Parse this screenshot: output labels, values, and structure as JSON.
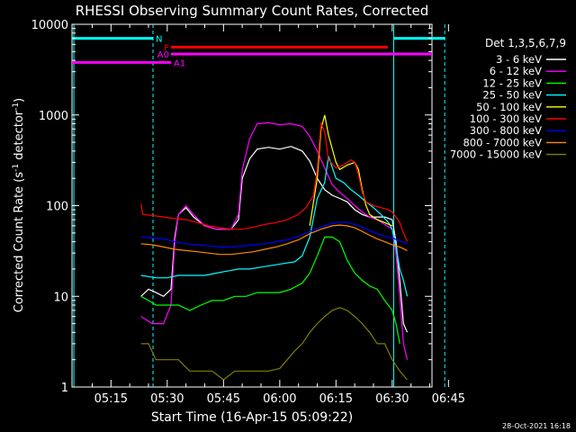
{
  "chart_data": {
    "type": "line",
    "title": "RHESSI Observing Summary Count Rates, Corrected",
    "xlabel": "Start Time (16-Apr-15 05:09:22)",
    "ylabel_main": "Corrected Count Rate (s",
    "ylabel_sup1": "-1",
    "ylabel_mid": " detector",
    "ylabel_sup2": "-1",
    "ylabel_end": ")",
    "yscale": "log",
    "ylim": [
      1,
      10000
    ],
    "xlim_min": [
      4.6,
      100.6
    ],
    "x_ticks": [
      {
        "t": 15,
        "label": "05:15"
      },
      {
        "t": 30,
        "label": "05:30"
      },
      {
        "t": 45,
        "label": "05:45"
      },
      {
        "t": 60,
        "label": "06:00"
      },
      {
        "t": 75,
        "label": "06:15"
      },
      {
        "t": 90,
        "label": "06:30"
      },
      {
        "t": 105,
        "label": "06:45"
      }
    ],
    "y_ticks": [
      {
        "v": 1,
        "label": "1"
      },
      {
        "v": 10,
        "label": "10"
      },
      {
        "v": 100,
        "label": "100"
      },
      {
        "v": 1000,
        "label": "1000"
      },
      {
        "v": 10000,
        "label": "10000"
      }
    ],
    "legend_title": "Det 1,3,5,6,7,9",
    "legend_position": "right",
    "series": [
      {
        "name": "3 - 6 keV",
        "color": "#ffffff",
        "points": [
          [
            23,
            10
          ],
          [
            25,
            12
          ],
          [
            27,
            11
          ],
          [
            29,
            10
          ],
          [
            31,
            12
          ],
          [
            32,
            45
          ],
          [
            33,
            80
          ],
          [
            35,
            95
          ],
          [
            37,
            75
          ],
          [
            40,
            60
          ],
          [
            43,
            55
          ],
          [
            47,
            55
          ],
          [
            49,
            70
          ],
          [
            50,
            200
          ],
          [
            52,
            330
          ],
          [
            54,
            420
          ],
          [
            57,
            440
          ],
          [
            60,
            420
          ],
          [
            63,
            450
          ],
          [
            66,
            400
          ],
          [
            68,
            310
          ],
          [
            70,
            200
          ],
          [
            72,
            150
          ],
          [
            74,
            130
          ],
          [
            76,
            120
          ],
          [
            78,
            110
          ],
          [
            80,
            90
          ],
          [
            82,
            80
          ],
          [
            84,
            75
          ],
          [
            86,
            75
          ],
          [
            88,
            75
          ],
          [
            90,
            70
          ],
          [
            91,
            40
          ],
          [
            92,
            15
          ],
          [
            93,
            5
          ],
          [
            94,
            4
          ]
        ]
      },
      {
        "name": "6 - 12 keV",
        "color": "#ff00ff",
        "points": [
          [
            23,
            6
          ],
          [
            26,
            5
          ],
          [
            29,
            5
          ],
          [
            31,
            8
          ],
          [
            32,
            40
          ],
          [
            33,
            80
          ],
          [
            35,
            100
          ],
          [
            37,
            80
          ],
          [
            40,
            60
          ],
          [
            43,
            55
          ],
          [
            47,
            55
          ],
          [
            49,
            80
          ],
          [
            50,
            250
          ],
          [
            52,
            550
          ],
          [
            54,
            800
          ],
          [
            57,
            820
          ],
          [
            60,
            780
          ],
          [
            63,
            800
          ],
          [
            66,
            750
          ],
          [
            68,
            580
          ],
          [
            70,
            400
          ],
          [
            72,
            260
          ],
          [
            74,
            170
          ],
          [
            76,
            140
          ],
          [
            78,
            120
          ],
          [
            80,
            100
          ],
          [
            82,
            85
          ],
          [
            84,
            75
          ],
          [
            86,
            70
          ],
          [
            88,
            62
          ],
          [
            90,
            55
          ],
          [
            91,
            30
          ],
          [
            92,
            10
          ],
          [
            93,
            3
          ],
          [
            94,
            2
          ]
        ]
      },
      {
        "name": "12 - 25 keV",
        "color": "#00ff00",
        "points": [
          [
            23,
            10
          ],
          [
            25,
            9
          ],
          [
            27,
            8
          ],
          [
            30,
            8
          ],
          [
            33,
            8
          ],
          [
            36,
            7
          ],
          [
            39,
            8
          ],
          [
            42,
            9
          ],
          [
            45,
            9
          ],
          [
            48,
            10
          ],
          [
            51,
            10
          ],
          [
            54,
            11
          ],
          [
            57,
            11
          ],
          [
            60,
            11
          ],
          [
            63,
            12
          ],
          [
            66,
            14
          ],
          [
            68,
            18
          ],
          [
            70,
            28
          ],
          [
            72,
            45
          ],
          [
            74,
            45
          ],
          [
            76,
            40
          ],
          [
            78,
            25
          ],
          [
            80,
            18
          ],
          [
            82,
            15
          ],
          [
            84,
            13
          ],
          [
            86,
            12
          ],
          [
            88,
            9
          ],
          [
            90,
            7
          ],
          [
            91,
            5
          ],
          [
            92,
            3
          ]
        ]
      },
      {
        "name": "25 - 50 keV",
        "color": "#00ffff",
        "points": [
          [
            23,
            17
          ],
          [
            27,
            16
          ],
          [
            30,
            16
          ],
          [
            33,
            17
          ],
          [
            37,
            17
          ],
          [
            40,
            17
          ],
          [
            43,
            18
          ],
          [
            46,
            19
          ],
          [
            49,
            20
          ],
          [
            52,
            20
          ],
          [
            55,
            21
          ],
          [
            58,
            22
          ],
          [
            61,
            23
          ],
          [
            64,
            24
          ],
          [
            66,
            28
          ],
          [
            68,
            45
          ],
          [
            70,
            120
          ],
          [
            72,
            180
          ],
          [
            73,
            350
          ],
          [
            75,
            200
          ],
          [
            77,
            180
          ],
          [
            79,
            150
          ],
          [
            81,
            130
          ],
          [
            83,
            110
          ],
          [
            85,
            95
          ],
          [
            87,
            80
          ],
          [
            89,
            65
          ],
          [
            90,
            55
          ],
          [
            91,
            35
          ],
          [
            92,
            20
          ],
          [
            93,
            15
          ],
          [
            94,
            10
          ]
        ]
      },
      {
        "name": "50 - 100 keV",
        "color": "#ffff00",
        "points": [
          [
            68,
            60
          ],
          [
            70,
            200
          ],
          [
            71,
            700
          ],
          [
            72,
            1000
          ],
          [
            73,
            600
          ],
          [
            75,
            300
          ],
          [
            76,
            250
          ],
          [
            78,
            280
          ],
          [
            80,
            300
          ],
          [
            81,
            250
          ],
          [
            82,
            150
          ],
          [
            83,
            100
          ],
          [
            84,
            80
          ],
          [
            86,
            70
          ],
          [
            88,
            65
          ],
          [
            90,
            60
          ]
        ]
      },
      {
        "name": "100 - 300 keV",
        "color": "#ff0000",
        "points": [
          [
            23,
            105
          ],
          [
            23.5,
            80
          ],
          [
            26,
            78
          ],
          [
            29,
            75
          ],
          [
            32,
            72
          ],
          [
            35,
            70
          ],
          [
            38,
            65
          ],
          [
            41,
            60
          ],
          [
            44,
            57
          ],
          [
            47,
            55
          ],
          [
            50,
            55
          ],
          [
            53,
            58
          ],
          [
            56,
            62
          ],
          [
            59,
            65
          ],
          [
            62,
            70
          ],
          [
            65,
            80
          ],
          [
            67,
            95
          ],
          [
            69,
            130
          ],
          [
            70,
            250
          ],
          [
            71,
            800
          ],
          [
            72,
            650
          ],
          [
            73,
            320
          ],
          [
            75,
            260
          ],
          [
            77,
            280
          ],
          [
            79,
            320
          ],
          [
            80,
            300
          ],
          [
            81,
            220
          ],
          [
            82,
            140
          ],
          [
            83,
            110
          ],
          [
            85,
            100
          ],
          [
            87,
            95
          ],
          [
            89,
            90
          ],
          [
            90,
            85
          ],
          [
            91,
            75
          ],
          [
            92,
            65
          ],
          [
            93,
            50
          ],
          [
            94,
            40
          ]
        ]
      },
      {
        "name": "300 - 800 keV",
        "color": "#0000ff",
        "points": [
          [
            23,
            45
          ],
          [
            26,
            44
          ],
          [
            29,
            43
          ],
          [
            32,
            40
          ],
          [
            35,
            38
          ],
          [
            38,
            37
          ],
          [
            41,
            36
          ],
          [
            44,
            35
          ],
          [
            47,
            35
          ],
          [
            50,
            36
          ],
          [
            53,
            37
          ],
          [
            56,
            38
          ],
          [
            59,
            40
          ],
          [
            62,
            42
          ],
          [
            65,
            46
          ],
          [
            68,
            52
          ],
          [
            71,
            58
          ],
          [
            74,
            64
          ],
          [
            76,
            66
          ],
          [
            78,
            65
          ],
          [
            80,
            62
          ],
          [
            82,
            58
          ],
          [
            84,
            53
          ],
          [
            86,
            49
          ],
          [
            88,
            46
          ],
          [
            90,
            44
          ],
          [
            92,
            41
          ],
          [
            94,
            38
          ]
        ]
      },
      {
        "name": "800 - 7000 keV",
        "color": "#ff8c00",
        "points": [
          [
            23,
            38
          ],
          [
            26,
            37
          ],
          [
            29,
            35
          ],
          [
            32,
            33
          ],
          [
            35,
            32
          ],
          [
            38,
            31
          ],
          [
            41,
            30
          ],
          [
            44,
            29
          ],
          [
            47,
            29
          ],
          [
            50,
            30
          ],
          [
            53,
            31
          ],
          [
            56,
            33
          ],
          [
            59,
            35
          ],
          [
            62,
            38
          ],
          [
            65,
            42
          ],
          [
            68,
            49
          ],
          [
            71,
            55
          ],
          [
            74,
            60
          ],
          [
            76,
            61
          ],
          [
            78,
            60
          ],
          [
            80,
            57
          ],
          [
            82,
            52
          ],
          [
            84,
            47
          ],
          [
            86,
            43
          ],
          [
            88,
            40
          ],
          [
            90,
            37
          ],
          [
            92,
            35
          ],
          [
            94,
            32
          ]
        ]
      },
      {
        "name": "7000 - 15000 keV",
        "color": "#808000",
        "points": [
          [
            23,
            3
          ],
          [
            25,
            3
          ],
          [
            27,
            2
          ],
          [
            30,
            2
          ],
          [
            33,
            2
          ],
          [
            36,
            1.5
          ],
          [
            39,
            1.5
          ],
          [
            42,
            1.5
          ],
          [
            45,
            1.2
          ],
          [
            48,
            1.5
          ],
          [
            51,
            1.5
          ],
          [
            54,
            1.5
          ],
          [
            57,
            1.5
          ],
          [
            60,
            1.6
          ],
          [
            62,
            2
          ],
          [
            64,
            2.5
          ],
          [
            66,
            3
          ],
          [
            68,
            4
          ],
          [
            70,
            5
          ],
          [
            72,
            6
          ],
          [
            74,
            7
          ],
          [
            76,
            7.5
          ],
          [
            78,
            7
          ],
          [
            80,
            6
          ],
          [
            82,
            5
          ],
          [
            84,
            4
          ],
          [
            86,
            3
          ],
          [
            88,
            3
          ],
          [
            90,
            2
          ],
          [
            92,
            1.5
          ],
          [
            94,
            1.2
          ]
        ]
      }
    ],
    "flag_bars": [
      {
        "label": "N",
        "color": "#00ffff",
        "segments": [
          [
            4.6,
            26.2
          ],
          [
            90.4,
            104.0
          ]
        ],
        "level": 7000
      },
      {
        "label": "F",
        "color": "#ff0000",
        "segments": [
          [
            31.0,
            88.8
          ]
        ],
        "level": 5600
      },
      {
        "label": "A0",
        "color": "#ff00ff",
        "segments": [
          [
            31.0,
            100.6
          ]
        ],
        "level": 4700
      },
      {
        "label": "A1",
        "color": "#ff00ff",
        "segments": [
          [
            4.6,
            31.0
          ]
        ],
        "level": 3800
      }
    ],
    "vlines": [
      {
        "t": 5.1,
        "color": "#00ffff",
        "style": "solid"
      },
      {
        "t": 26.2,
        "color": "#00ffff",
        "style": "dashed"
      },
      {
        "t": 90.4,
        "color": "#00ffff",
        "style": "solid"
      },
      {
        "t": 104.0,
        "color": "#00ffff",
        "style": "dashed"
      }
    ],
    "grid": false
  },
  "footer": {
    "timestamp": "28-Oct-2021 16:18"
  }
}
